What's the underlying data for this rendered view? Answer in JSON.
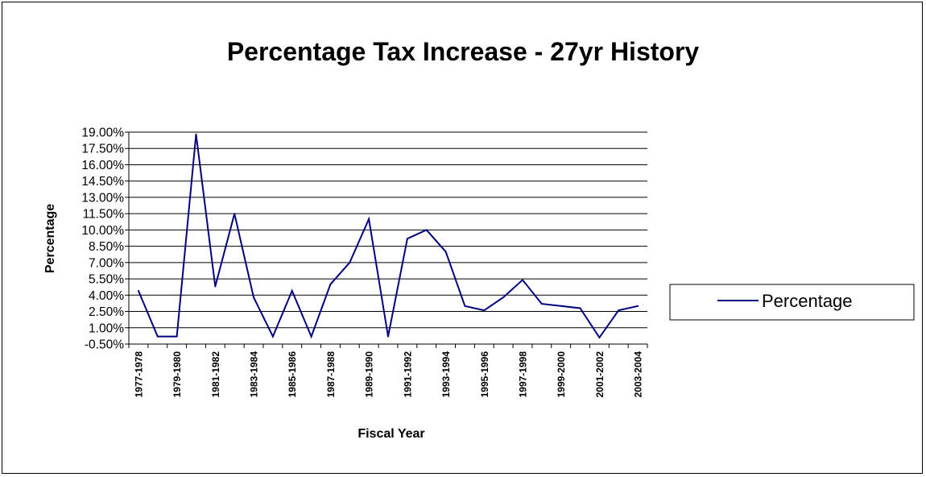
{
  "chart_data": {
    "type": "line",
    "title": "Percentage Tax Increase - 27yr History",
    "xlabel": "Fiscal Year",
    "ylabel": "Percentage",
    "ylim": [
      -0.5,
      19.0
    ],
    "y_step": 1.5,
    "y_tick_labels": [
      "-0.50%",
      "1.00%",
      "2.50%",
      "4.00%",
      "5.50%",
      "7.00%",
      "8.50%",
      "10.00%",
      "11.50%",
      "13.00%",
      "14.50%",
      "16.00%",
      "17.50%",
      "19.00%"
    ],
    "x": [
      "1977-1978",
      "1978-1979",
      "1979-1980",
      "1980-1981",
      "1981-1982",
      "1982-1983",
      "1983-1984",
      "1984-1985",
      "1985-1986",
      "1986-1987",
      "1987-1988",
      "1988-1989",
      "1989-1990",
      "1990-1991",
      "1991-1992",
      "1992-1993",
      "1993-1994",
      "1994-1995",
      "1995-1996",
      "1996-1997",
      "1997-1998",
      "1998-1999",
      "1999-2000",
      "2000-2001",
      "2001-2002",
      "2002-2003",
      "2003-2004"
    ],
    "x_tick_labels_shown": [
      "1977-1978",
      "1979-1980",
      "1981-1982",
      "1983-1984",
      "1985-1986",
      "1987-1988",
      "1989-1990",
      "1991-1992",
      "1993-1994",
      "1995-1996",
      "1997-1998",
      "1999-2000",
      "2001-2002",
      "2003-2004"
    ],
    "series": [
      {
        "name": "Percentage",
        "color": "#000080",
        "values": [
          4.4,
          0.2,
          0.2,
          18.8,
          4.8,
          11.5,
          3.8,
          0.2,
          4.4,
          0.2,
          5.0,
          7.0,
          11.0,
          0.2,
          9.2,
          10.0,
          8.0,
          3.0,
          2.6,
          3.8,
          5.4,
          3.2,
          3.0,
          2.8,
          0.1,
          2.6,
          3.0
        ]
      }
    ],
    "grid": "horizontal",
    "legend_position": "right"
  }
}
